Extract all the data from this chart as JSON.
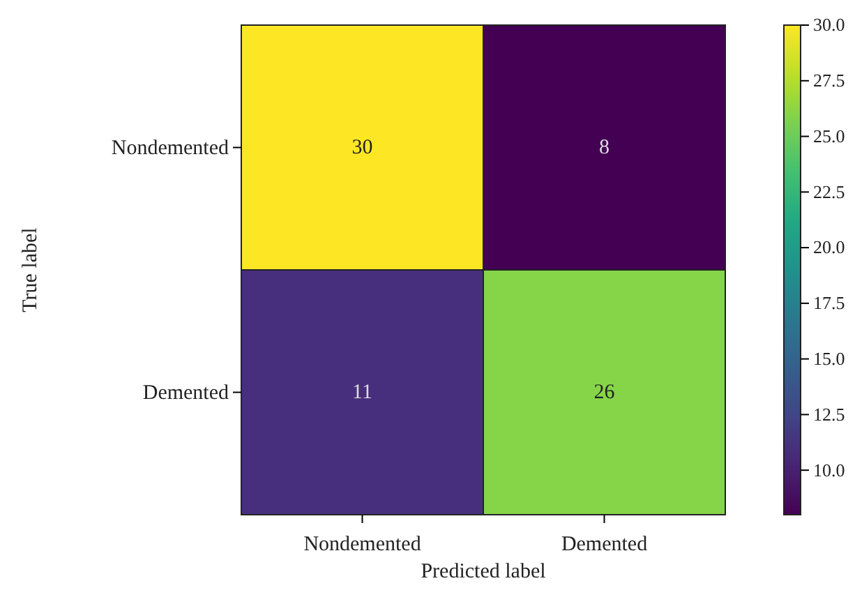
{
  "chart_data": {
    "type": "heatmap",
    "xlabel": "Predicted label",
    "ylabel": "True label",
    "categories": [
      "Nondemented",
      "Demented"
    ],
    "y_categories": [
      "Nondemented",
      "Demented"
    ],
    "cells": [
      [
        30,
        8
      ],
      [
        11,
        26
      ]
    ],
    "data_labels": true,
    "clim": [
      8,
      30
    ],
    "cticks": [
      {
        "value": 10,
        "label": "10.0"
      },
      {
        "value": 12.5,
        "label": "12.5"
      },
      {
        "value": 15,
        "label": "15.0"
      },
      {
        "value": 17.5,
        "label": "17.5"
      },
      {
        "value": 20,
        "label": "20.0"
      },
      {
        "value": 22.5,
        "label": "22.5"
      },
      {
        "value": 25,
        "label": "25.0"
      },
      {
        "value": 27.5,
        "label": "27.5"
      },
      {
        "value": 30,
        "label": "30.0"
      }
    ]
  }
}
